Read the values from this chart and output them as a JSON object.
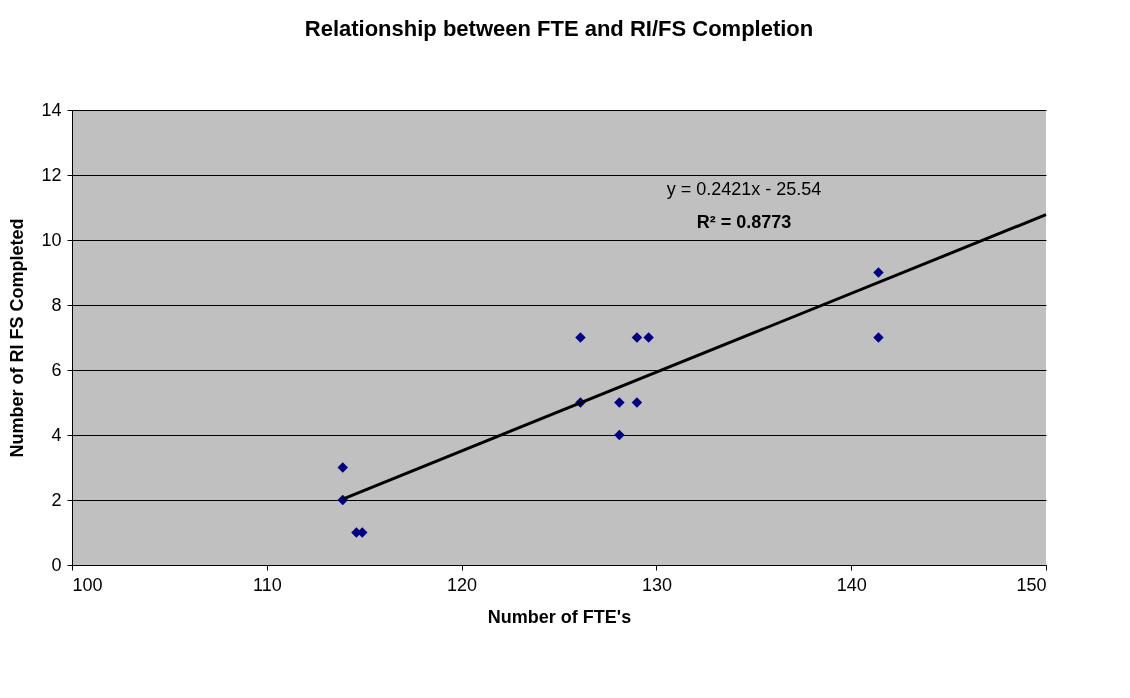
{
  "chart_data": {
    "type": "scatter",
    "title": "Relationship between FTE and RI/FS Completion",
    "xlabel": "Number of FTE's",
    "ylabel": "Number of RI FS Completed",
    "xlim": [
      100,
      150
    ],
    "xticks": [
      100,
      110,
      120,
      130,
      140,
      150
    ],
    "ylim": [
      0,
      14
    ],
    "yticks": [
      0,
      2,
      4,
      6,
      8,
      10,
      12,
      14
    ],
    "grid": "y",
    "series": [
      {
        "color": "#000080",
        "marker": "diamond",
        "x": [
          113.9,
          113.9,
          114.6,
          114.9,
          126.1,
          126.1,
          128.1,
          128.1,
          129.0,
          129.0,
          129.6,
          141.4,
          141.4
        ],
        "values": [
          3,
          2,
          1,
          1,
          7,
          5,
          5,
          4,
          7,
          5,
          7,
          9,
          7
        ]
      },
      {
        "type": "line",
        "color": "#000000",
        "marker": "none",
        "x": [
          113.9,
          150
        ],
        "values": [
          2.03,
          10.78
        ]
      }
    ],
    "annotations": [
      "y = 0.2421x - 25.54",
      "R² = 0.8773"
    ]
  }
}
